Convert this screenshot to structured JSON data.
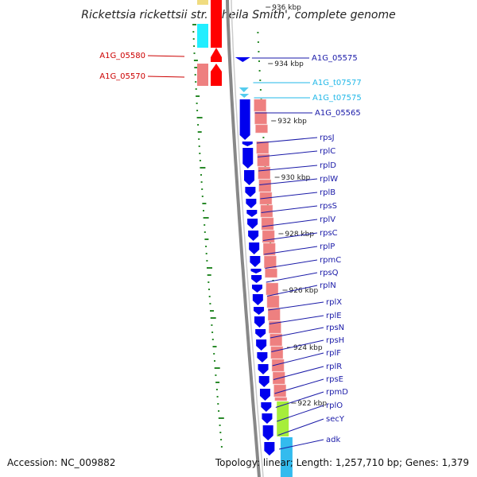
{
  "title": "Rickettsia rickettsii str. 'Sheila Smith', complete genome",
  "accession": "Accession: NC_009882",
  "topology": "Topology: linear; Length: 1,257,710 bp; Genes: 1,379",
  "colors": {
    "forward_gene": "#0000ee",
    "reverse_gene": "#ff0000",
    "trna": "#55ccee",
    "label_red": "#cc0000",
    "label_blue": "#1a1aa8",
    "label_cyan": "#22b8e8",
    "pink_track": "#ee8080",
    "gc_dots": "#2a8a2a",
    "backbone": "#888888"
  },
  "ticks": [
    {
      "label": "936 kbp"
    },
    {
      "label": "934 kbp"
    },
    {
      "label": "932 kbp"
    },
    {
      "label": "930 kbp"
    },
    {
      "label": "928 kbp"
    },
    {
      "label": "926 kbp"
    },
    {
      "label": "924 kbp"
    },
    {
      "label": "922 kbp"
    }
  ],
  "labels_left": [
    {
      "text": "A1G_05580"
    },
    {
      "text": "A1G_05570"
    }
  ],
  "labels_right": [
    {
      "text": "A1G_05575",
      "kind": "cds"
    },
    {
      "text": "A1G_t07577",
      "kind": "trna"
    },
    {
      "text": "A1G_t07575",
      "kind": "trna"
    },
    {
      "text": "A1G_05565",
      "kind": "cds"
    },
    {
      "text": "rpsJ",
      "kind": "cds"
    },
    {
      "text": "rplC",
      "kind": "cds"
    },
    {
      "text": "rplD",
      "kind": "cds"
    },
    {
      "text": "rplW",
      "kind": "cds"
    },
    {
      "text": "rplB",
      "kind": "cds"
    },
    {
      "text": "rpsS",
      "kind": "cds"
    },
    {
      "text": "rplV",
      "kind": "cds"
    },
    {
      "text": "rpsC",
      "kind": "cds"
    },
    {
      "text": "rplP",
      "kind": "cds"
    },
    {
      "text": "rpmC",
      "kind": "cds"
    },
    {
      "text": "rpsQ",
      "kind": "cds"
    },
    {
      "text": "rplN",
      "kind": "cds"
    },
    {
      "text": "rplX",
      "kind": "cds"
    },
    {
      "text": "rplE",
      "kind": "cds"
    },
    {
      "text": "rpsN",
      "kind": "cds"
    },
    {
      "text": "rpsH",
      "kind": "cds"
    },
    {
      "text": "rplF",
      "kind": "cds"
    },
    {
      "text": "rplR",
      "kind": "cds"
    },
    {
      "text": "rpsE",
      "kind": "cds"
    },
    {
      "text": "rpmD",
      "kind": "cds"
    },
    {
      "text": "rplO",
      "kind": "cds"
    },
    {
      "text": "secY",
      "kind": "cds"
    },
    {
      "text": "adk",
      "kind": "cds"
    }
  ]
}
